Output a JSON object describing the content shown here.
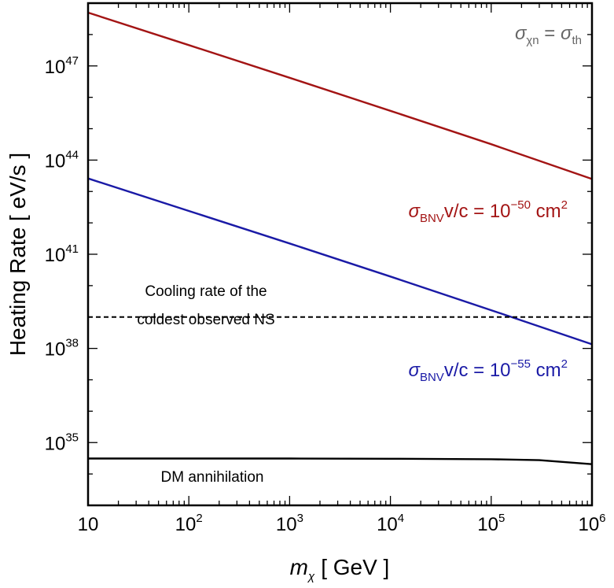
{
  "chart_data": {
    "type": "line",
    "x_scale": "log",
    "y_scale": "log",
    "xlim": [
      10,
      1000000
    ],
    "ylim": [
      1e+33,
      1e+49
    ],
    "x_ticks": [
      {
        "value": 10,
        "base": "10",
        "exp": ""
      },
      {
        "value": 100,
        "base": "10",
        "exp": "2"
      },
      {
        "value": 1000,
        "base": "10",
        "exp": "3"
      },
      {
        "value": 10000,
        "base": "10",
        "exp": "4"
      },
      {
        "value": 100000,
        "base": "10",
        "exp": "5"
      },
      {
        "value": 1000000,
        "base": "10",
        "exp": "6"
      }
    ],
    "y_ticks": [
      {
        "value": 1e+35,
        "base": "10",
        "exp": "35"
      },
      {
        "value": 1e+38,
        "base": "10",
        "exp": "38"
      },
      {
        "value": 1e+41,
        "base": "10",
        "exp": "41"
      },
      {
        "value": 1e+44,
        "base": "10",
        "exp": "44"
      },
      {
        "value": 1e+47,
        "base": "10",
        "exp": "47"
      }
    ],
    "xlabel": {
      "var": "m",
      "sub": "χ",
      "unit": "[ GeV ]"
    },
    "ylabel": "Heating Rate [ eV/s ]",
    "grid": false,
    "series": [
      {
        "label_sigma": "σ",
        "label_sub": "BNV",
        "label_mid": "v/c = 10",
        "label_exp": "−50",
        "label_unit": " cm",
        "label_unit_exp": "2",
        "color": "#a31414",
        "x": [
          10,
          100,
          1000,
          10000,
          100000,
          1000000
        ],
        "y": [
          5e+48,
          4.6e+47,
          4.2e+46,
          3.7e+45,
          3.2e+44,
          2.5e+43
        ]
      },
      {
        "label_sigma": "σ",
        "label_sub": "BNV",
        "label_mid": "v/c = 10",
        "label_exp": "−55",
        "label_unit": " cm",
        "label_unit_exp": "2",
        "color": "#1a1aa6",
        "x": [
          10,
          100,
          1000,
          10000,
          100000,
          1000000
        ],
        "y": [
          2.6e+43,
          2.4e+42,
          2.2e+41,
          1.95e+40,
          1.65e+39,
          1.35e+38
        ]
      },
      {
        "name": "DM annihilation",
        "color": "#000000",
        "x": [
          10,
          100,
          1000,
          10000,
          100000,
          300000,
          1000000
        ],
        "y": [
          3.1e+34,
          3.1e+34,
          3.1e+34,
          3.05e+34,
          2.95e+34,
          2.75e+34,
          2.05e+34
        ]
      },
      {
        "name_line1": "Cooling rate of the",
        "name_line2": "coldest observed NS",
        "style": "dashed",
        "color": "#000000",
        "x": [
          10,
          1000000
        ],
        "y": [
          1e+39,
          1e+39
        ]
      }
    ],
    "annotation": {
      "sigma1": "σ",
      "sub1": "χn",
      "eq": " = ",
      "sigma2": "σ",
      "sub2": "th",
      "color": "#666666"
    }
  }
}
